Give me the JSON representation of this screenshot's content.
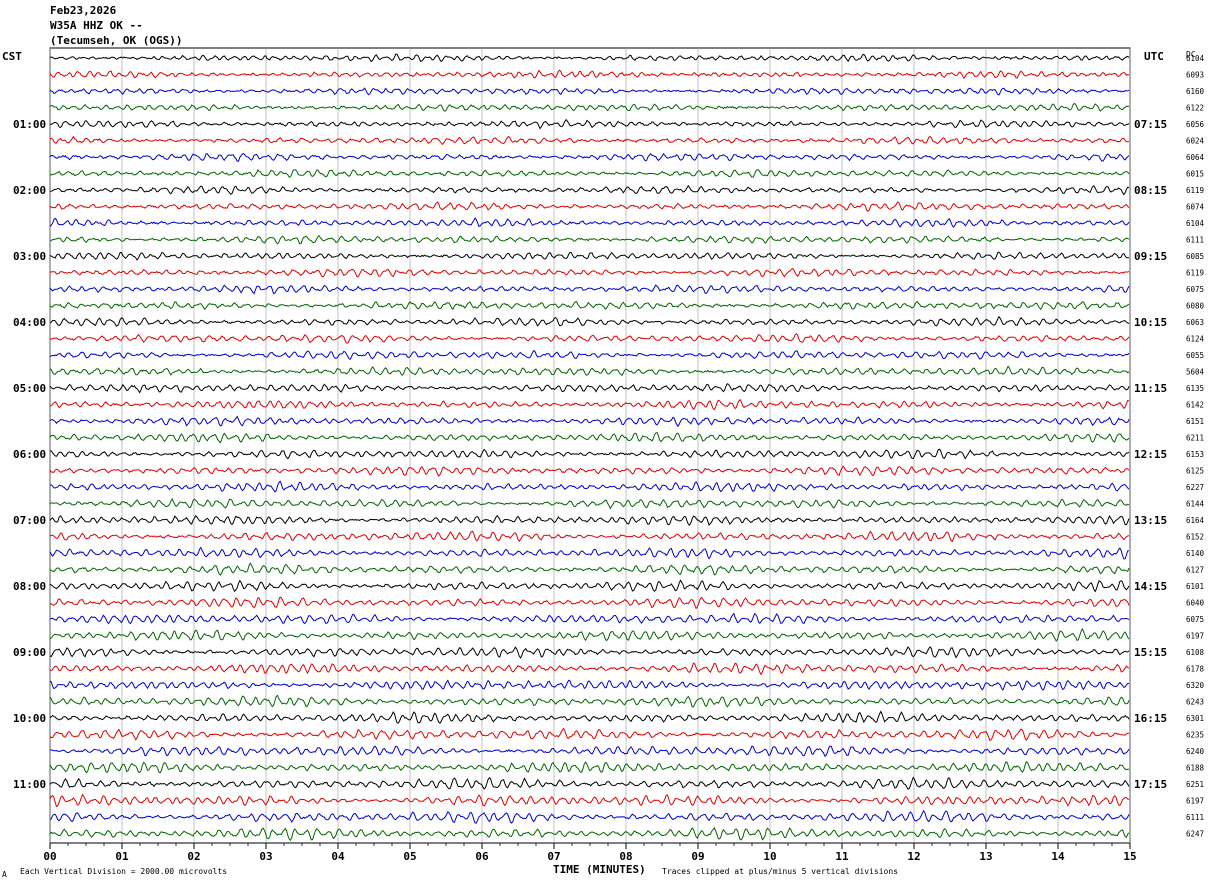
{
  "header": {
    "date": "Feb23,2026",
    "station": "W35A HHZ OK --",
    "location": "(Tecumseh, OK (OGS))"
  },
  "left_tz": "CST",
  "right_tz": "UTC",
  "dc_label": "DC",
  "footer": {
    "scale_note": "Each Vertical Division = 2000.00 microvolts",
    "clip_note": "Traces clipped at plus/minus 5 vertical divisions",
    "corner_mark": "A"
  },
  "chart_data": {
    "type": "line",
    "title": "",
    "xlabel": "TIME (MINUTES)",
    "ylabel": "",
    "xlim": [
      0,
      15
    ],
    "x_ticks": [
      "00",
      "01",
      "02",
      "03",
      "04",
      "05",
      "06",
      "07",
      "08",
      "09",
      "10",
      "11",
      "12",
      "13",
      "14",
      "15"
    ],
    "grid": true,
    "trace_colors": [
      "#000000",
      "#dd0000",
      "#0000cc",
      "#006600"
    ],
    "left_hour_labels": [
      "01:00",
      "02:00",
      "03:00",
      "04:00",
      "05:00",
      "06:00",
      "07:00",
      "08:00",
      "09:00",
      "10:00",
      "11:00"
    ],
    "right_hour_labels": [
      "07:15",
      "08:15",
      "09:15",
      "10:15",
      "11:15",
      "12:15",
      "13:15",
      "14:15",
      "15:15",
      "16:15",
      "17:15"
    ],
    "dc_offsets": [
      6104,
      6093,
      6160,
      6122,
      6056,
      6024,
      6064,
      6015,
      6119,
      6074,
      6104,
      6111,
      6085,
      6119,
      6075,
      6080,
      6063,
      6124,
      6055,
      5604,
      6135,
      6142,
      6151,
      6211,
      6153,
      6125,
      6227,
      6144,
      6164,
      6152,
      6140,
      6127,
      6101,
      6040,
      6075,
      6197,
      6108,
      6178,
      6320,
      6243,
      6301,
      6235,
      6240,
      6188,
      6251,
      6197,
      6111,
      6247
    ],
    "series": [
      {
        "values": []
      }
    ]
  }
}
